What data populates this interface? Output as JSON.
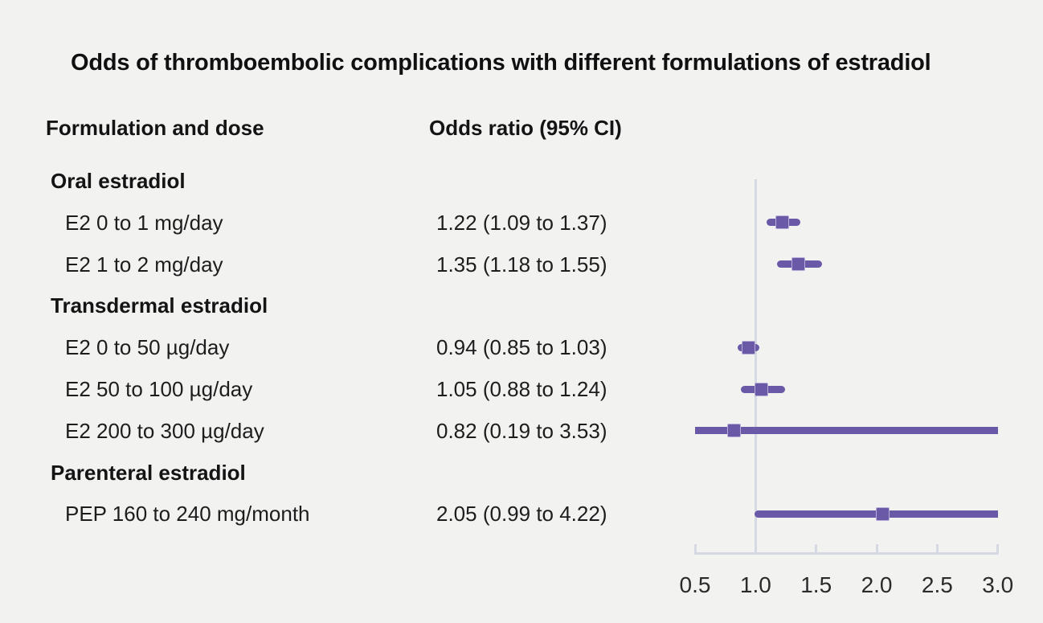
{
  "colors": {
    "background": "#f2f2f1",
    "marker_purple": "#6a59a6",
    "axis_gray": "#d5d9e1",
    "text_dark": "#1d1d1d"
  },
  "columns": {
    "formulation": "Formulation and dose",
    "odds_ratio": "Odds ratio (95% CI)"
  },
  "chart_data": {
    "type": "forest",
    "title": "Odds of thromboembolic complications with different formulations of estradiol",
    "xlabel": "",
    "ylabel": "",
    "xlim": [
      0.5,
      3.0
    ],
    "x_ticks": [
      0.5,
      1.0,
      1.5,
      2.0,
      2.5,
      3.0
    ],
    "reference_line": 1.0,
    "grid": false,
    "legend": "none",
    "groups": [
      {
        "label": "Oral estradiol",
        "rows": [
          {
            "label": "E2 0 to 1 mg/day",
            "or_text": "1.22 (1.09 to 1.37)",
            "or": 1.22,
            "ci_low": 1.09,
            "ci_high": 1.37
          },
          {
            "label": "E2 1 to 2 mg/day",
            "or_text": "1.35 (1.18 to 1.55)",
            "or": 1.35,
            "ci_low": 1.18,
            "ci_high": 1.55
          }
        ]
      },
      {
        "label": "Transdermal estradiol",
        "rows": [
          {
            "label": "E2 0 to 50 µg/day",
            "or_text": "0.94 (0.85 to 1.03)",
            "or": 0.94,
            "ci_low": 0.85,
            "ci_high": 1.03
          },
          {
            "label": "E2 50 to 100 µg/day",
            "or_text": "1.05 (0.88 to 1.24)",
            "or": 1.05,
            "ci_low": 0.88,
            "ci_high": 1.24
          },
          {
            "label": "E2 200 to 300 µg/day",
            "or_text": "0.82 (0.19 to 3.53)",
            "or": 0.82,
            "ci_low": 0.19,
            "ci_high": 3.53
          }
        ]
      },
      {
        "label": "Parenteral estradiol",
        "rows": [
          {
            "label": "PEP 160 to 240 mg/month",
            "or_text": "2.05 (0.99 to 4.22)",
            "or": 2.05,
            "ci_low": 0.99,
            "ci_high": 4.22
          }
        ]
      }
    ]
  }
}
